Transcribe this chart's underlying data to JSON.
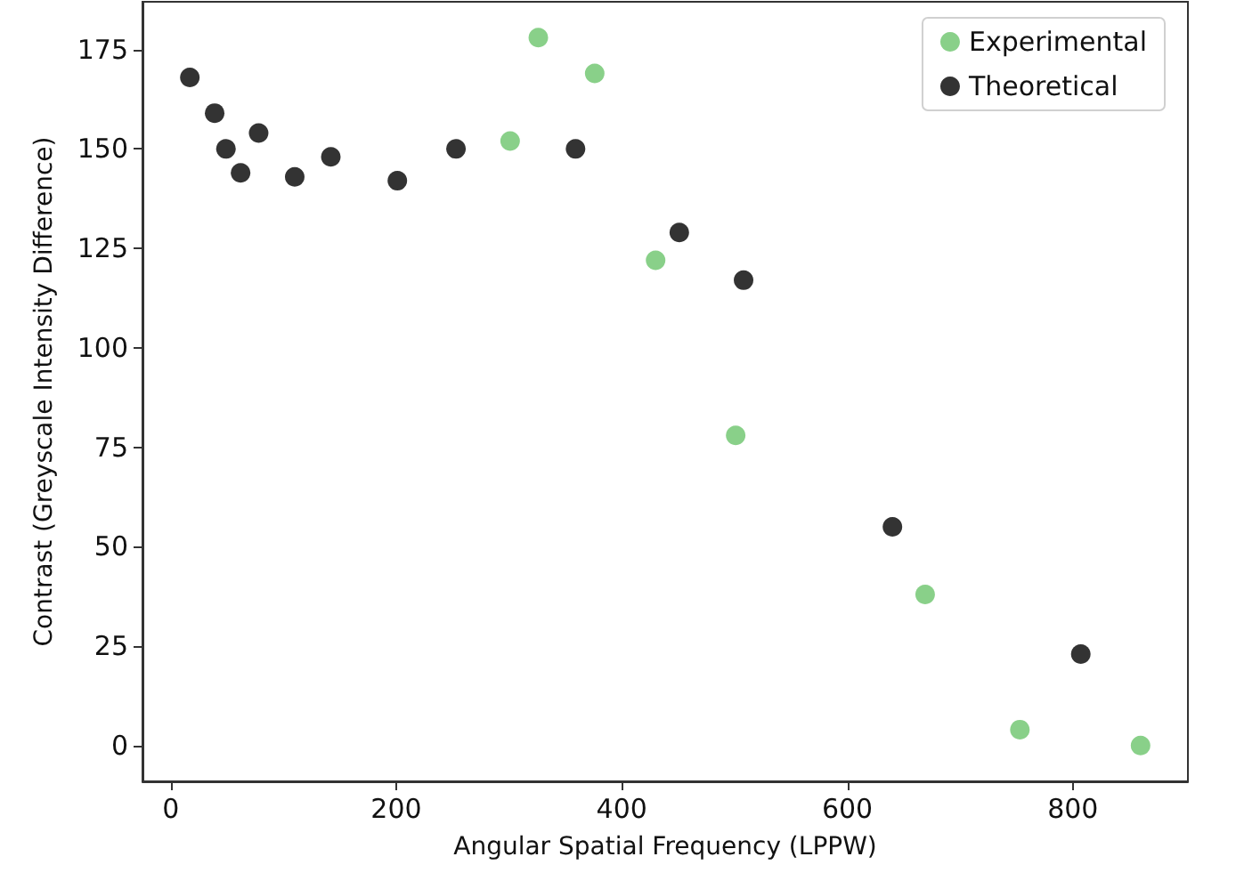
{
  "chart_data": {
    "type": "scatter",
    "xlabel": "Angular Spatial Frequency (LPPW)",
    "ylabel": "Contrast (Greyscale Intensity Difference)",
    "series": [
      {
        "name": "Experimental",
        "color": "#6cc46c",
        "x": [
          301,
          326,
          376,
          430,
          501,
          669,
          753,
          860
        ],
        "values": [
          152,
          178,
          169,
          122,
          78,
          38,
          4,
          0
        ]
      },
      {
        "name": "Theoretical",
        "color": "#000000",
        "x": [
          17,
          39,
          49,
          62,
          78,
          110,
          142,
          201,
          253,
          359,
          451,
          508,
          640,
          807
        ],
        "values": [
          168,
          159,
          150,
          144,
          154,
          143,
          148,
          142,
          150,
          150,
          129,
          117,
          55,
          23
        ]
      }
    ],
    "xlim": [
      -25,
      902
    ],
    "ylim": [
      -9,
      187
    ],
    "xticks": [
      0,
      200,
      400,
      600,
      800
    ],
    "yticks": [
      0,
      25,
      50,
      75,
      100,
      125,
      150,
      175
    ],
    "legend": "top right",
    "marker": "circle",
    "grid": false
  }
}
